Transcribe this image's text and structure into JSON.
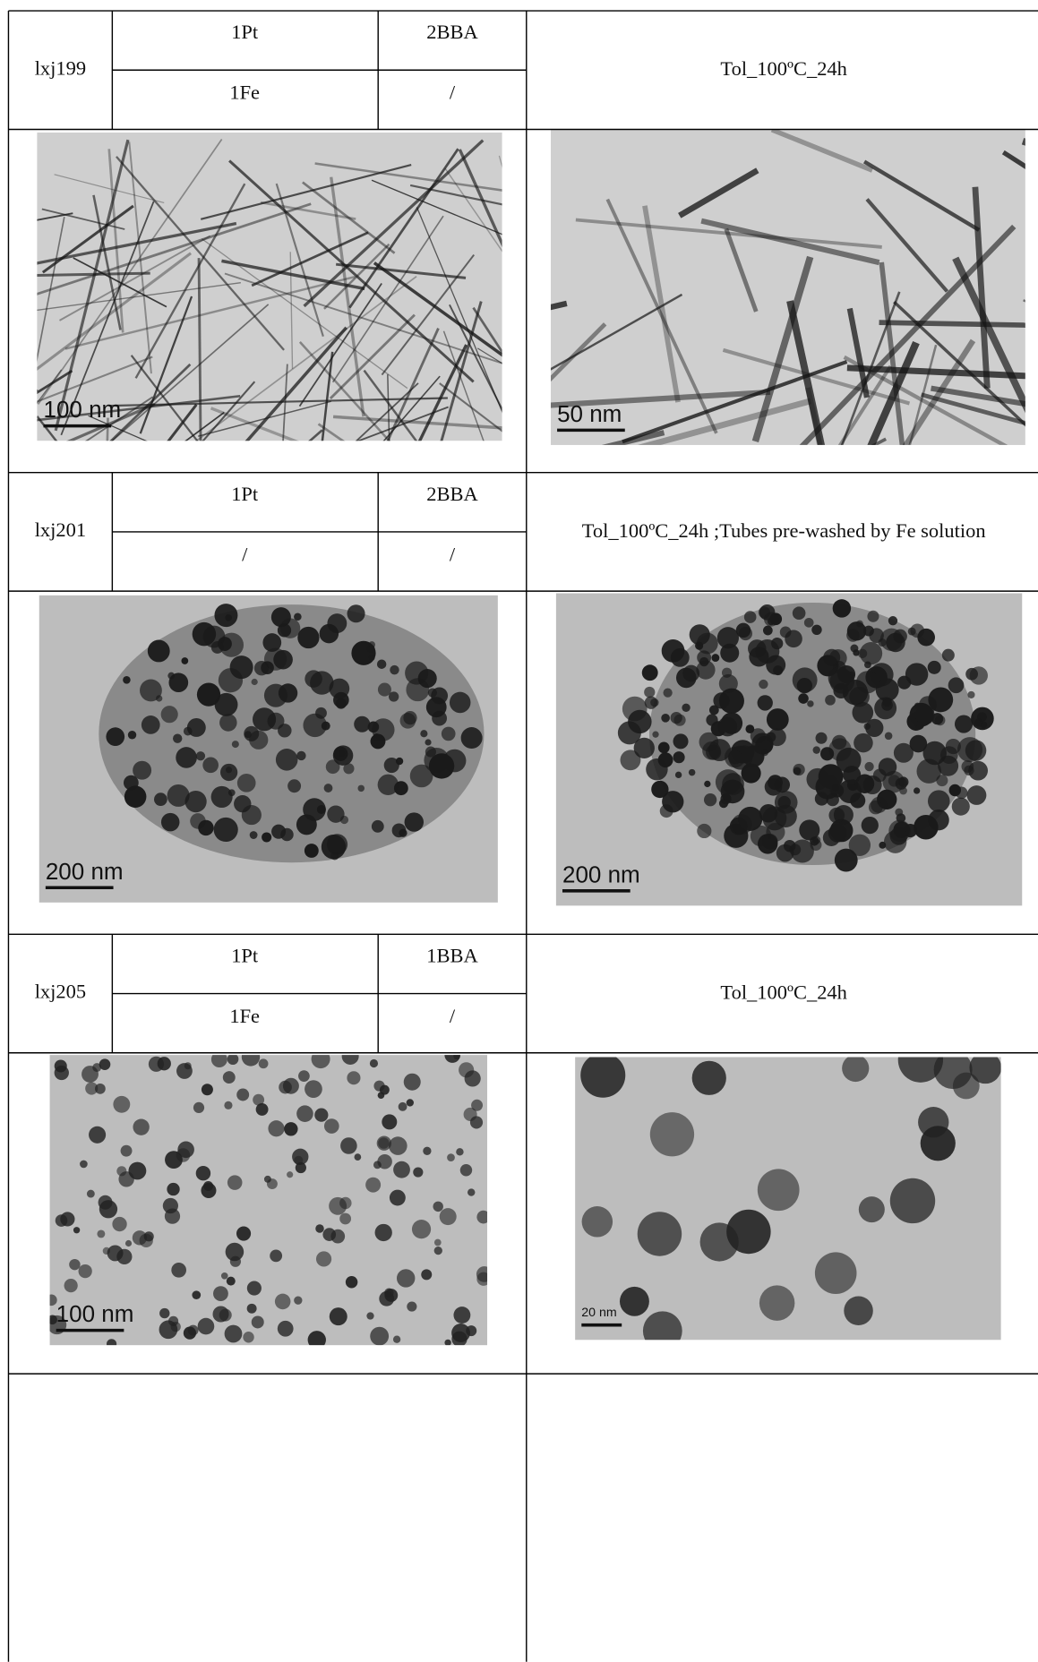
{
  "table": {
    "rows": [
      {
        "sample": "lxj199",
        "reagents": [
          [
            "1Pt",
            "2BBA"
          ],
          [
            "1Fe",
            "/"
          ]
        ],
        "conditions": "Tol_100ºC_24h",
        "images": [
          {
            "scale_bar": "100 nm"
          },
          {
            "scale_bar": "50 nm"
          }
        ]
      },
      {
        "sample": "lxj201",
        "reagents": [
          [
            "1Pt",
            "2BBA"
          ],
          [
            "/",
            "/"
          ]
        ],
        "conditions": "Tol_100ºC_24h ;Tubes pre-washed by Fe solution",
        "images": [
          {
            "scale_bar": "200 nm"
          },
          {
            "scale_bar": "200 nm"
          }
        ]
      },
      {
        "sample": "lxj205",
        "reagents": [
          [
            "1Pt",
            "1BBA"
          ],
          [
            "1Fe",
            "/"
          ]
        ],
        "conditions": "Tol_100ºC_24h",
        "images": [
          {
            "scale_bar": "100 nm"
          },
          {
            "scale_bar": "20 nm"
          }
        ]
      }
    ]
  }
}
